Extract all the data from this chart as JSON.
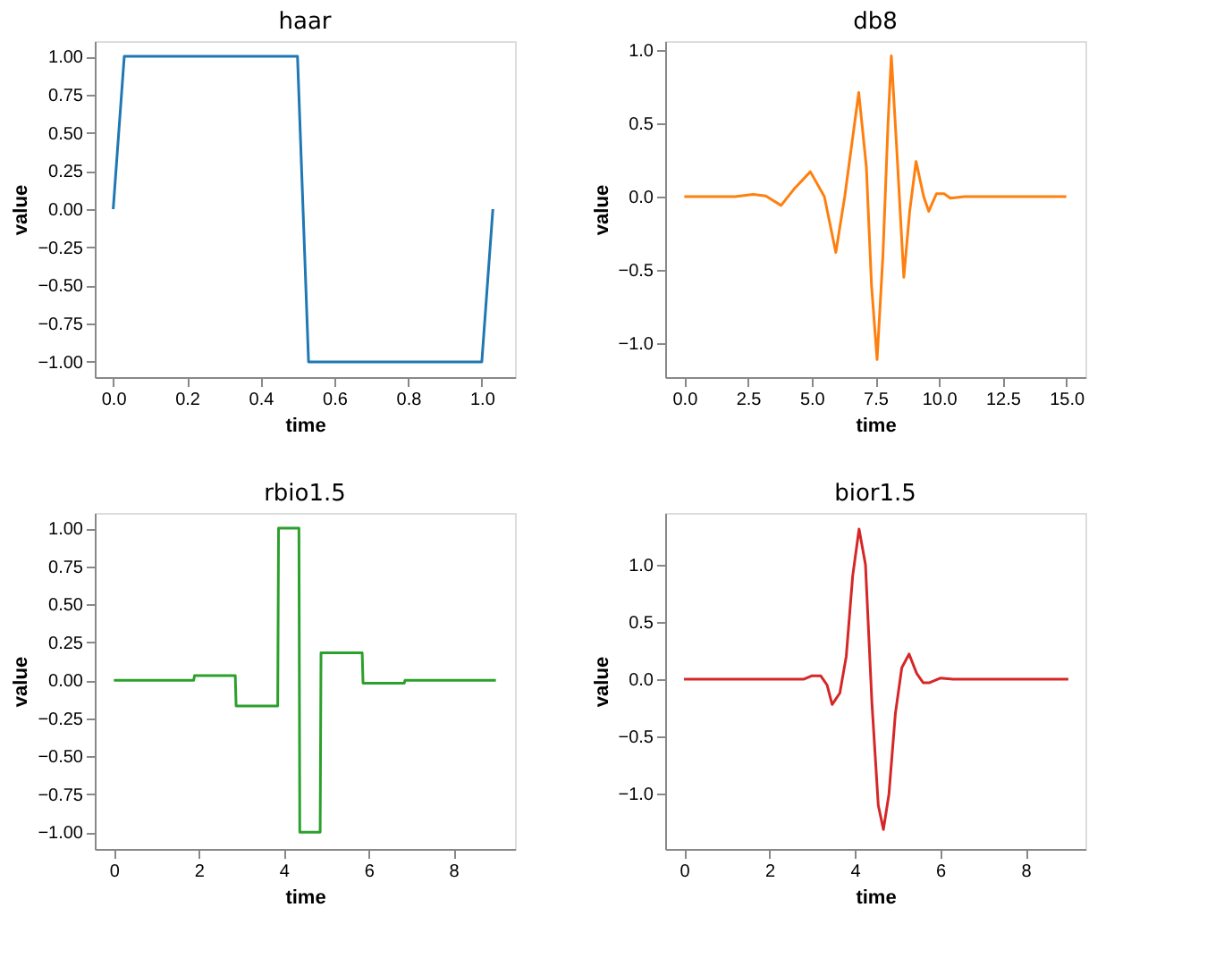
{
  "chart_data": [
    {
      "type": "line",
      "title": "haar",
      "xlabel": "time",
      "ylabel": "value",
      "color": "#1f77b4",
      "x": [
        0,
        0.03,
        0.5,
        0.53,
        1.0,
        1.03
      ],
      "values": [
        0,
        1,
        1,
        -1,
        -1,
        0
      ],
      "xlim": [
        -0.05,
        1.09
      ],
      "ylim": [
        -1.1,
        1.1
      ],
      "xticks": [
        {
          "value": 0,
          "label": "0.0"
        },
        0.2,
        0.4,
        0.6,
        0.8,
        {
          "value": 1,
          "label": "1.0"
        }
      ],
      "yticks": [
        {
          "value": -1,
          "label": "−1.00"
        },
        {
          "value": -0.75,
          "label": "−0.75"
        },
        {
          "value": -0.5,
          "label": "−0.50"
        },
        {
          "value": -0.25,
          "label": "−0.25"
        },
        {
          "value": 0,
          "label": "0.00"
        },
        0.25,
        {
          "value": 0.5,
          "label": "0.50"
        },
        0.75,
        {
          "value": 1,
          "label": "1.00"
        }
      ]
    },
    {
      "type": "line",
      "title": "db8",
      "xlabel": "time",
      "ylabel": "value",
      "color": "#ff7f0e",
      "x": [
        0,
        2.0,
        2.7,
        3.2,
        3.8,
        4.3,
        4.95,
        5.5,
        5.95,
        6.3,
        6.85,
        7.15,
        7.35,
        7.57,
        7.8,
        8.0,
        8.13,
        8.35,
        8.62,
        8.85,
        9.1,
        9.4,
        9.6,
        9.9,
        10.2,
        10.45,
        11,
        15
      ],
      "values": [
        0,
        0,
        0.015,
        0.005,
        -0.06,
        0.05,
        0.17,
        0.0,
        -0.38,
        0.0,
        0.71,
        0.2,
        -0.6,
        -1.11,
        -0.4,
        0.5,
        0.96,
        0.3,
        -0.55,
        -0.1,
        0.24,
        0.0,
        -0.1,
        0.02,
        0.02,
        -0.01,
        0,
        0
      ],
      "xlim": [
        -0.75,
        15.75
      ],
      "ylim": [
        -1.23,
        1.06
      ],
      "xticks": [
        {
          "value": 0,
          "label": "0.0"
        },
        2.5,
        {
          "value": 5,
          "label": "5.0"
        },
        7.5,
        {
          "value": 10,
          "label": "10.0"
        },
        12.5,
        {
          "value": 15,
          "label": "15.0"
        }
      ],
      "yticks": [
        {
          "value": -1,
          "label": "−1.0"
        },
        {
          "value": -0.5,
          "label": "−0.5"
        },
        {
          "value": 0,
          "label": "0.0"
        },
        0.5,
        {
          "value": 1,
          "label": "1.0"
        }
      ]
    },
    {
      "type": "line",
      "title": "rbio1.5",
      "xlabel": "time",
      "ylabel": "value",
      "color": "#2ca02c",
      "x": [
        0,
        1.88,
        1.9,
        2.86,
        2.88,
        3.86,
        3.88,
        4.36,
        4.38,
        4.86,
        4.88,
        5.85,
        5.87,
        6.84,
        6.86,
        9
      ],
      "values": [
        0,
        0,
        0.03,
        0.03,
        -0.17,
        -0.17,
        1.0,
        1.0,
        -1.0,
        -1.0,
        0.18,
        0.18,
        -0.02,
        -0.02,
        0,
        0
      ],
      "xlim": [
        -0.45,
        9.45
      ],
      "ylim": [
        -1.11,
        1.1
      ],
      "xticks": [
        0,
        2,
        4,
        6,
        8
      ],
      "yticks": [
        {
          "value": -1,
          "label": "−1.00"
        },
        {
          "value": -0.75,
          "label": "−0.75"
        },
        {
          "value": -0.5,
          "label": "−0.50"
        },
        {
          "value": -0.25,
          "label": "−0.25"
        },
        {
          "value": 0,
          "label": "0.00"
        },
        0.25,
        {
          "value": 0.5,
          "label": "0.50"
        },
        0.75,
        {
          "value": 1,
          "label": "1.00"
        }
      ]
    },
    {
      "type": "line",
      "title": "bior1.5",
      "xlabel": "time",
      "ylabel": "value",
      "color": "#d62728",
      "x": [
        0,
        2.6,
        2.8,
        3.0,
        3.2,
        3.35,
        3.47,
        3.65,
        3.8,
        3.95,
        4.1,
        4.25,
        4.4,
        4.55,
        4.67,
        4.8,
        4.95,
        5.1,
        5.27,
        5.45,
        5.6,
        5.75,
        6.0,
        6.3,
        9
      ],
      "values": [
        0,
        0,
        0.0,
        0.03,
        0.03,
        -0.05,
        -0.22,
        -0.12,
        0.2,
        0.9,
        1.31,
        1.0,
        -0.2,
        -1.1,
        -1.31,
        -1.0,
        -0.3,
        0.1,
        0.22,
        0.05,
        -0.03,
        -0.03,
        0.01,
        0,
        0
      ],
      "xlim": [
        -0.44,
        9.4
      ],
      "ylim": [
        -1.48,
        1.45
      ],
      "xticks": [
        0,
        2,
        4,
        6,
        8
      ],
      "yticks": [
        {
          "value": -1,
          "label": "−1.0"
        },
        {
          "value": -0.5,
          "label": "−0.5"
        },
        {
          "value": 0,
          "label": "0.0"
        },
        0.5,
        {
          "value": 1,
          "label": "1.0"
        }
      ]
    }
  ]
}
